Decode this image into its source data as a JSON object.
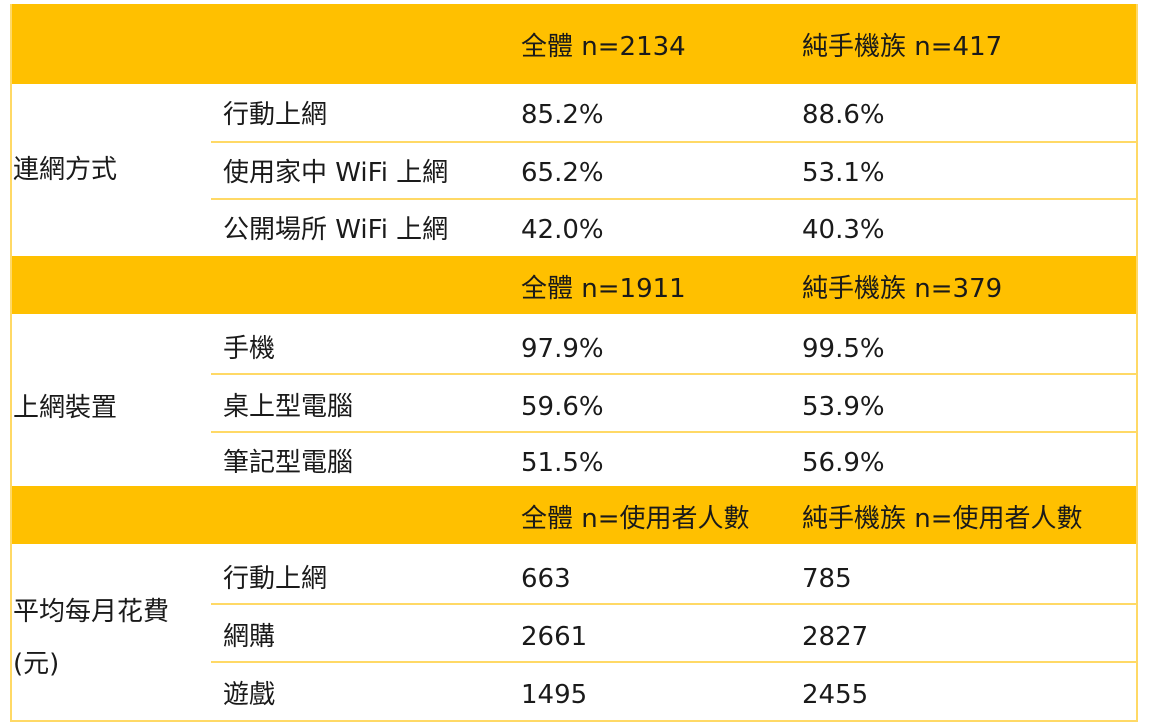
{
  "sections": [
    {
      "header": {
        "total": "全體  n=2134",
        "mobile_only": "純手機族  n=417"
      },
      "label": "連網方式",
      "rows": [
        {
          "item": "行動上網",
          "total": "85.2%",
          "mobile_only": "88.6%"
        },
        {
          "item": "使用家中 WiFi 上網",
          "total": "65.2%",
          "mobile_only": "53.1%"
        },
        {
          "item": "公開場所 WiFi 上網",
          "total": "42.0%",
          "mobile_only": "40.3%"
        }
      ]
    },
    {
      "header": {
        "total": "全體  n=1911",
        "mobile_only": "純手機族  n=379"
      },
      "label": "上網裝置",
      "rows": [
        {
          "item": "手機",
          "total": "97.9%",
          "mobile_only": "99.5%"
        },
        {
          "item": "桌上型電腦",
          "total": "59.6%",
          "mobile_only": "53.9%"
        },
        {
          "item": "筆記型電腦",
          "total": "51.5%",
          "mobile_only": "56.9%"
        }
      ]
    },
    {
      "header": {
        "total": "全體  n=使用者人數",
        "mobile_only": "純手機族  n=使用者人數"
      },
      "label_line1": "平均每月花費",
      "label_line2": "(元)",
      "rows": [
        {
          "item": "行動上網",
          "total": "663",
          "mobile_only": "785"
        },
        {
          "item": "網購",
          "total": "2661",
          "mobile_only": "2827"
        },
        {
          "item": "遊戲",
          "total": "1495",
          "mobile_only": "2455"
        }
      ]
    }
  ],
  "colors": {
    "header_bg": "#FFC000",
    "grid": "#FFD966"
  }
}
